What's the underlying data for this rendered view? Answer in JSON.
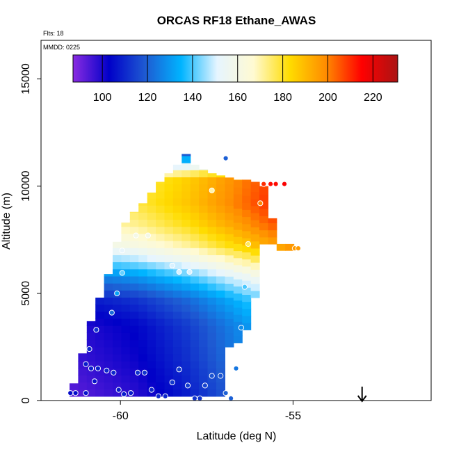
{
  "chart_data": {
    "type": "heatmap",
    "title": "ORCAS RF18 Ethane_AWAS",
    "flights_label": "Flts: 18",
    "mmdd_label": "MMDD: 0225",
    "xlabel": "Latitude (deg N)",
    "ylabel": "Altitude (m)",
    "xlim": [
      -62.3,
      -51.0
    ],
    "ylim": [
      0,
      16800
    ],
    "x_ticks": [
      -60,
      -55
    ],
    "x_tick_labels": [
      "-60",
      "-55"
    ],
    "y_ticks": [
      0,
      5000,
      10000,
      15000
    ],
    "y_tick_labels": [
      "0",
      "5000",
      "10000",
      "15000"
    ],
    "colorbar": {
      "ticks": [
        100,
        120,
        140,
        160,
        180,
        200,
        220
      ],
      "tick_labels": [
        "100",
        "120",
        "140",
        "160",
        "180",
        "200",
        "220"
      ],
      "range": [
        87,
        231
      ],
      "colors": [
        "#8a2be2",
        "#0000c8",
        "#1e5ad2",
        "#00b4ff",
        "#e6f5ff",
        "#fffad2",
        "#ffdc00",
        "#ff8c00",
        "#ff0000",
        "#aa1414"
      ]
    },
    "curtain": {
      "lat_columns": [
        -61.35,
        -61.1,
        -60.85,
        -60.6,
        -60.35,
        -60.1,
        -59.85,
        -59.6,
        -59.35,
        -59.1,
        -58.85,
        -58.6,
        -58.35,
        -58.1,
        -57.85,
        -57.6,
        -57.35,
        -57.1,
        -56.85,
        -56.6,
        -56.35,
        -56.1,
        -55.85,
        -55.6,
        -55.35,
        -55.1
      ],
      "columns": [
        {
          "bottom": 200,
          "top": 800
        },
        {
          "bottom": 200,
          "top": 2200
        },
        {
          "bottom": 200,
          "top": 3700
        },
        {
          "bottom": 200,
          "top": 4800
        },
        {
          "bottom": 200,
          "top": 5900
        },
        {
          "bottom": 200,
          "top": 7400
        },
        {
          "bottom": 200,
          "top": 8300
        },
        {
          "bottom": 200,
          "top": 8800
        },
        {
          "bottom": 200,
          "top": 9200
        },
        {
          "bottom": 200,
          "top": 9700
        },
        {
          "bottom": 200,
          "top": 10200
        },
        {
          "bottom": 200,
          "top": 10600
        },
        {
          "bottom": 200,
          "top": 11000
        },
        {
          "bottom": 200,
          "top": 11500
        },
        {
          "bottom": 200,
          "top": 11000
        },
        {
          "bottom": 200,
          "top": 10800
        },
        {
          "bottom": 200,
          "top": 10600
        },
        {
          "bottom": 200,
          "top": 10500
        },
        {
          "bottom": 2500,
          "top": 10400
        },
        {
          "bottom": 2700,
          "top": 10300
        },
        {
          "bottom": 3300,
          "top": 10300
        },
        {
          "bottom": 4800,
          "top": 10200
        },
        {
          "bottom": 7300,
          "top": 10000
        },
        {
          "bottom": 7300,
          "top": 8500
        },
        {
          "bottom": 7000,
          "top": 7300
        },
        {
          "bottom": 7000,
          "top": 7300
        }
      ],
      "profile": [
        {
          "alt": 0,
          "value": 108
        },
        {
          "alt": 2000,
          "value": 112
        },
        {
          "alt": 3500,
          "value": 114
        },
        {
          "alt": 4700,
          "value": 122
        },
        {
          "alt": 5800,
          "value": 140
        },
        {
          "alt": 6600,
          "value": 158
        },
        {
          "alt": 7300,
          "value": 172
        },
        {
          "alt": 8200,
          "value": 182
        },
        {
          "alt": 9200,
          "value": 188
        },
        {
          "alt": 10400,
          "value": 186
        },
        {
          "alt": 11500,
          "value": 120
        }
      ],
      "lat_gradient": [
        {
          "lat": -61.4,
          "delta": -16
        },
        {
          "lat": -59.5,
          "delta": -10
        },
        {
          "lat": -58.0,
          "delta": 0
        },
        {
          "lat": -56.5,
          "delta": 14
        },
        {
          "lat": -55.0,
          "delta": 28
        }
      ]
    },
    "samples": [
      {
        "lat": -61.45,
        "alt": 350,
        "value": 105
      },
      {
        "lat": -61.3,
        "alt": 350,
        "value": 105
      },
      {
        "lat": -61.0,
        "alt": 350,
        "value": 106
      },
      {
        "lat": -60.85,
        "alt": 1500,
        "value": 108
      },
      {
        "lat": -60.75,
        "alt": 900,
        "value": 106
      },
      {
        "lat": -60.65,
        "alt": 1500,
        "value": 108
      },
      {
        "lat": -61.0,
        "alt": 1700,
        "value": 108
      },
      {
        "lat": -60.9,
        "alt": 2400,
        "value": 110
      },
      {
        "lat": -60.7,
        "alt": 3300,
        "value": 112
      },
      {
        "lat": -60.4,
        "alt": 1400,
        "value": 110
      },
      {
        "lat": -60.2,
        "alt": 1300,
        "value": 110
      },
      {
        "lat": -60.05,
        "alt": 500,
        "value": 108
      },
      {
        "lat": -59.9,
        "alt": 300,
        "value": 108
      },
      {
        "lat": -59.7,
        "alt": 350,
        "value": 108
      },
      {
        "lat": -59.5,
        "alt": 1300,
        "value": 112
      },
      {
        "lat": -59.3,
        "alt": 1300,
        "value": 112
      },
      {
        "lat": -59.1,
        "alt": 500,
        "value": 110
      },
      {
        "lat": -58.9,
        "alt": 200,
        "value": 110
      },
      {
        "lat": -58.7,
        "alt": 200,
        "value": 110
      },
      {
        "lat": -58.5,
        "alt": 850,
        "value": 113
      },
      {
        "lat": -58.3,
        "alt": 1450,
        "value": 114
      },
      {
        "lat": -58.05,
        "alt": 700,
        "value": 114
      },
      {
        "lat": -57.85,
        "alt": 100,
        "value": 112
      },
      {
        "lat": -57.7,
        "alt": 100,
        "value": 112
      },
      {
        "lat": -57.55,
        "alt": 700,
        "value": 115
      },
      {
        "lat": -57.35,
        "alt": 1150,
        "value": 118
      },
      {
        "lat": -57.1,
        "alt": 1150,
        "value": 118
      },
      {
        "lat": -56.95,
        "alt": 350,
        "value": 120
      },
      {
        "lat": -56.8,
        "alt": 100,
        "value": 120
      },
      {
        "lat": -56.65,
        "alt": 1500,
        "value": 124
      },
      {
        "lat": -56.5,
        "alt": 3400,
        "value": 128
      },
      {
        "lat": -56.4,
        "alt": 5300,
        "value": 140
      },
      {
        "lat": -56.3,
        "alt": 7300,
        "value": 176
      },
      {
        "lat": -55.95,
        "alt": 9200,
        "value": 200
      },
      {
        "lat": -55.85,
        "alt": 10100,
        "value": 210
      },
      {
        "lat": -55.65,
        "alt": 10100,
        "value": 214
      },
      {
        "lat": -55.5,
        "alt": 10100,
        "value": 214
      },
      {
        "lat": -55.25,
        "alt": 10100,
        "value": 216
      },
      {
        "lat": -54.95,
        "alt": 7100,
        "value": 196
      },
      {
        "lat": -54.85,
        "alt": 7100,
        "value": 196
      },
      {
        "lat": -60.25,
        "alt": 4100,
        "value": 122
      },
      {
        "lat": -60.1,
        "alt": 5000,
        "value": 132
      },
      {
        "lat": -59.95,
        "alt": 5950,
        "value": 142
      },
      {
        "lat": -59.95,
        "alt": 7000,
        "value": 152
      },
      {
        "lat": -59.55,
        "alt": 7700,
        "value": 160
      },
      {
        "lat": -59.2,
        "alt": 7700,
        "value": 160
      },
      {
        "lat": -58.5,
        "alt": 6300,
        "value": 150
      },
      {
        "lat": -58.3,
        "alt": 6000,
        "value": 150
      },
      {
        "lat": -58.0,
        "alt": 6000,
        "value": 150
      },
      {
        "lat": -57.35,
        "alt": 9800,
        "value": 170
      },
      {
        "lat": -56.95,
        "alt": 11300,
        "value": 120
      }
    ],
    "arrow": {
      "lat": -53.0,
      "label": "down-arrow"
    }
  }
}
